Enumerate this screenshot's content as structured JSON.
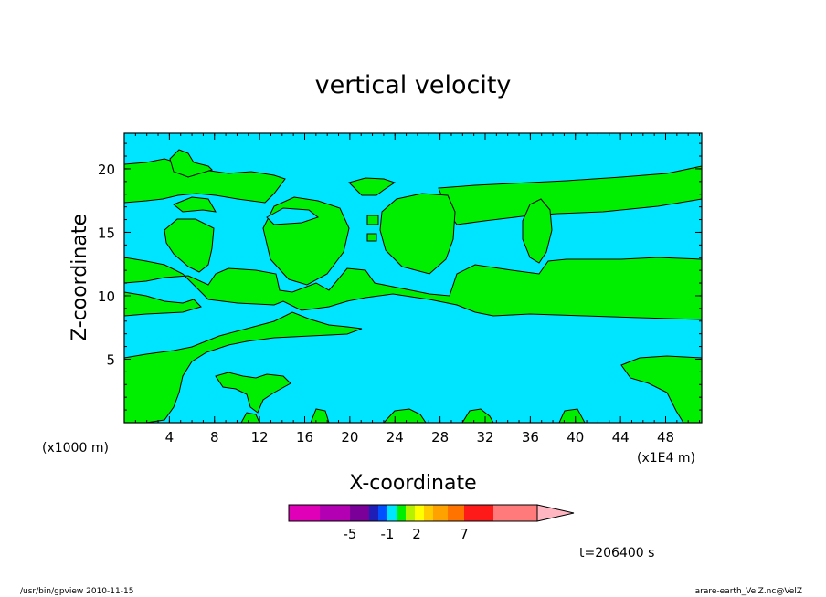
{
  "chart_data": {
    "type": "contour",
    "title": "vertical velocity",
    "xlabel": "X-coordinate",
    "ylabel": "Z-coordinate",
    "x_scale_label": "(x1E4 m)",
    "y_scale_label": "(x1000 m)",
    "x_ticks": [
      "4",
      "8",
      "12",
      "16",
      "20",
      "24",
      "28",
      "32",
      "36",
      "40",
      "44",
      "48"
    ],
    "y_ticks": [
      "5",
      "10",
      "15",
      "20"
    ],
    "xlim": [
      0,
      51.2
    ],
    "ylim": [
      0,
      22.8
    ],
    "colorbar_labels": [
      "-5",
      "-1",
      "2",
      "7"
    ],
    "colors": {
      "background": "#00e5ff",
      "field": "#00ef00"
    },
    "time_label": "t=206400 s"
  },
  "footer": {
    "left": "/usr/bin/gpview   2010-11-15",
    "right": "arare-earth_VelZ.nc@VelZ"
  }
}
